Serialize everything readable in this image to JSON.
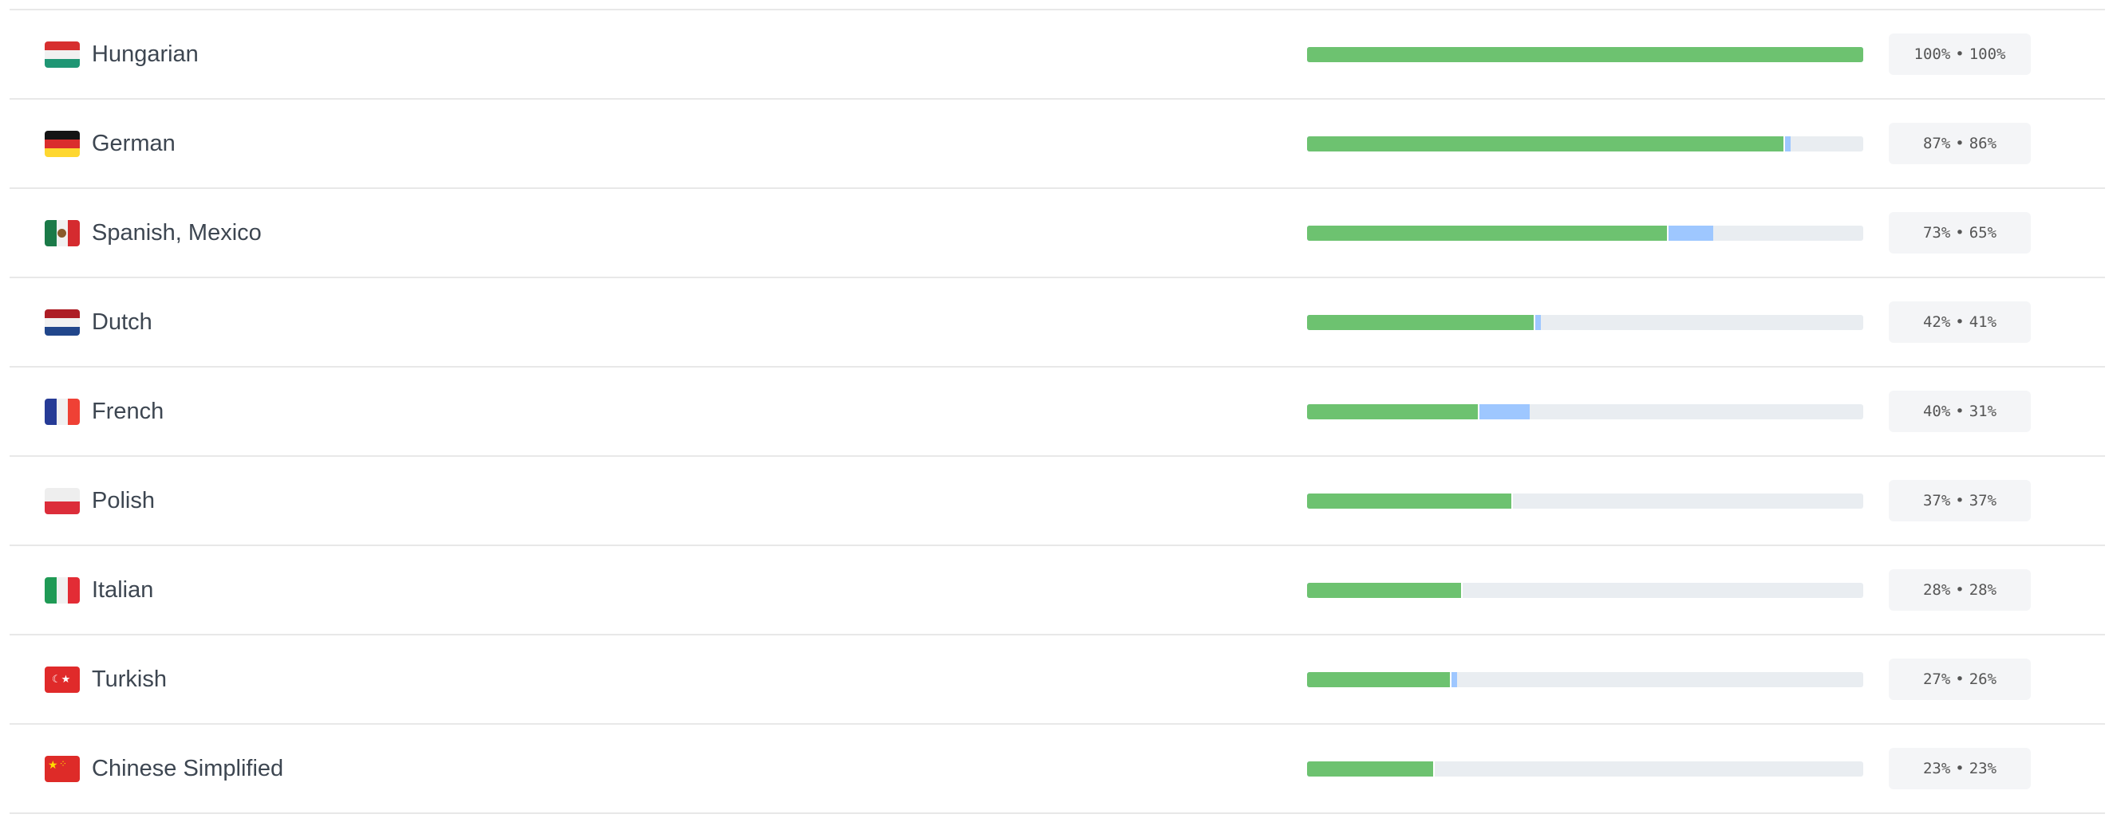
{
  "languages": [
    {
      "name": "Hungarian",
      "translated": 100,
      "approved": 100,
      "translated_label": "100%",
      "approved_label": "100%",
      "flag": [
        "#d72f2f",
        "#f1f1f1",
        "#1f9674"
      ],
      "flag_dir": "h"
    },
    {
      "name": "German",
      "translated": 87,
      "approved": 86,
      "translated_label": "87%",
      "approved_label": "86%",
      "flag": [
        "#141414",
        "#da2d2d",
        "#fed730"
      ],
      "flag_dir": "h"
    },
    {
      "name": "Spanish, Mexico",
      "translated": 73,
      "approved": 65,
      "translated_label": "73%",
      "approved_label": "65%",
      "flag": [
        "#1b7a48",
        "#f1f1f1",
        "#d52b2f"
      ],
      "flag_dir": "v",
      "emblem": "eagle"
    },
    {
      "name": "Dutch",
      "translated": 42,
      "approved": 41,
      "translated_label": "42%",
      "approved_label": "41%",
      "flag": [
        "#ad1d25",
        "#f1f1f1",
        "#21468b"
      ],
      "flag_dir": "h"
    },
    {
      "name": "French",
      "translated": 40,
      "approved": 31,
      "translated_label": "40%",
      "approved_label": "31%",
      "flag": [
        "#263b96",
        "#f1f1f1",
        "#ef4135"
      ],
      "flag_dir": "v"
    },
    {
      "name": "Polish",
      "translated": 37,
      "approved": 37,
      "translated_label": "37%",
      "approved_label": "37%",
      "flag": [
        "#eeeeee",
        "#dc2d3a"
      ],
      "flag_dir": "h"
    },
    {
      "name": "Italian",
      "translated": 28,
      "approved": 28,
      "translated_label": "28%",
      "approved_label": "28%",
      "flag": [
        "#1f9a55",
        "#f1f1f1",
        "#e32c35"
      ],
      "flag_dir": "v"
    },
    {
      "name": "Turkish",
      "translated": 27,
      "approved": 26,
      "translated_label": "27%",
      "approved_label": "26%",
      "flag": [
        "#e02a2a"
      ],
      "flag_dir": "h",
      "emblem": "crescent"
    },
    {
      "name": "Chinese Simplified",
      "translated": 23,
      "approved": 23,
      "translated_label": "23%",
      "approved_label": "23%",
      "flag": [
        "#de2b28"
      ],
      "flag_dir": "h",
      "emblem": "stars"
    }
  ],
  "separator": "•",
  "colors": {
    "approved": "#6dc270",
    "translated": "#9ec7ff",
    "track": "#e9edf1"
  }
}
